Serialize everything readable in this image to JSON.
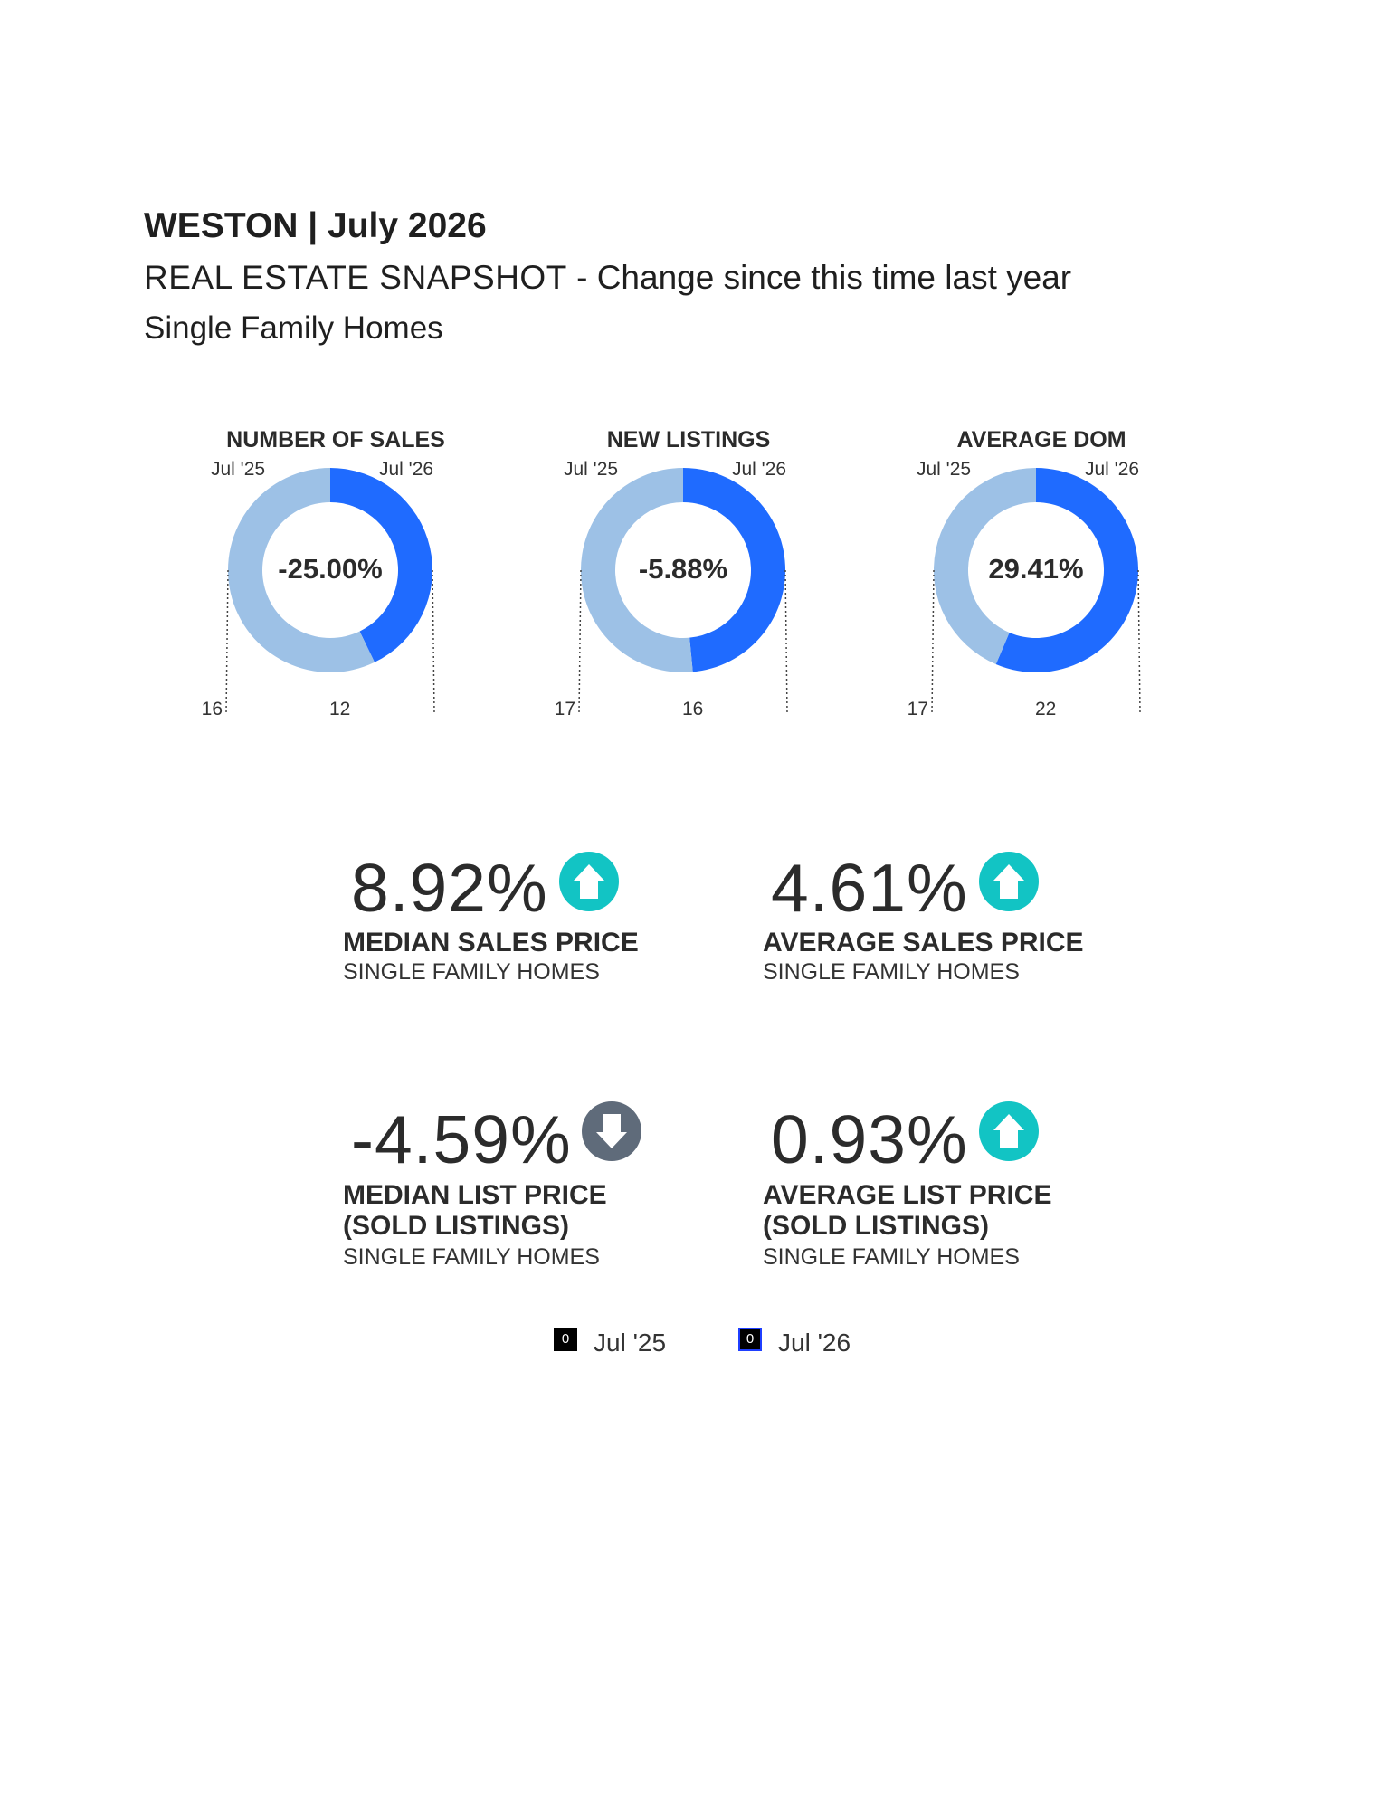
{
  "header": {
    "title": "WESTON | July 2026",
    "subtitle_lead": "REAL ESTATE SNAPSHOT",
    "subtitle_rest": "- Change since this time last year",
    "property_type": "Single Family Homes"
  },
  "chart_data": [
    {
      "type": "pie",
      "title": "NUMBER OF SALES",
      "labels": [
        "Jul '25",
        "Jul '26"
      ],
      "values": [
        16,
        12
      ],
      "center_label": "-25.00%",
      "value_labels": [
        "16",
        "12"
      ]
    },
    {
      "type": "pie",
      "title": "NEW LISTINGS",
      "labels": [
        "Jul '25",
        "Jul '26"
      ],
      "values": [
        17,
        16
      ],
      "center_label": "-5.88%",
      "value_labels": [
        "17",
        "16"
      ]
    },
    {
      "type": "pie",
      "title": "AVERAGE DOM",
      "labels": [
        "Jul '25",
        "Jul '26"
      ],
      "values": [
        17,
        22
      ],
      "center_label": "29.41%",
      "value_labels": [
        "17",
        "22"
      ]
    }
  ],
  "colors": {
    "jul25": "#9dc1e6",
    "jul26": "#1f6bff",
    "up_arrow": "#12c4c4",
    "down_arrow": "#5f6b7a"
  },
  "stats": [
    {
      "pct": "8.92%",
      "direction": "up",
      "icon": "arrow-up-circle-icon",
      "label_line1": "MEDIAN SALES PRICE",
      "label_line2": "",
      "sub": "SINGLE FAMILY HOMES"
    },
    {
      "pct": "4.61%",
      "direction": "up",
      "icon": "arrow-up-circle-icon",
      "label_line1": "AVERAGE SALES PRICE",
      "label_line2": "",
      "sub": "SINGLE FAMILY HOMES"
    },
    {
      "pct": "-4.59%",
      "direction": "down",
      "icon": "arrow-down-circle-icon",
      "label_line1": "MEDIAN LIST PRICE",
      "label_line2": "(SOLD LISTINGS)",
      "sub": "SINGLE FAMILY HOMES"
    },
    {
      "pct": "0.93%",
      "direction": "up",
      "icon": "arrow-up-circle-icon",
      "label_line1": "AVERAGE LIST PRICE",
      "label_line2": "(SOLD LISTINGS)",
      "sub": "SINGLE FAMILY HOMES"
    }
  ],
  "legend": [
    {
      "label": "Jul '25",
      "swatch_text": "0"
    },
    {
      "label": "Jul '26",
      "swatch_text": "0"
    }
  ]
}
